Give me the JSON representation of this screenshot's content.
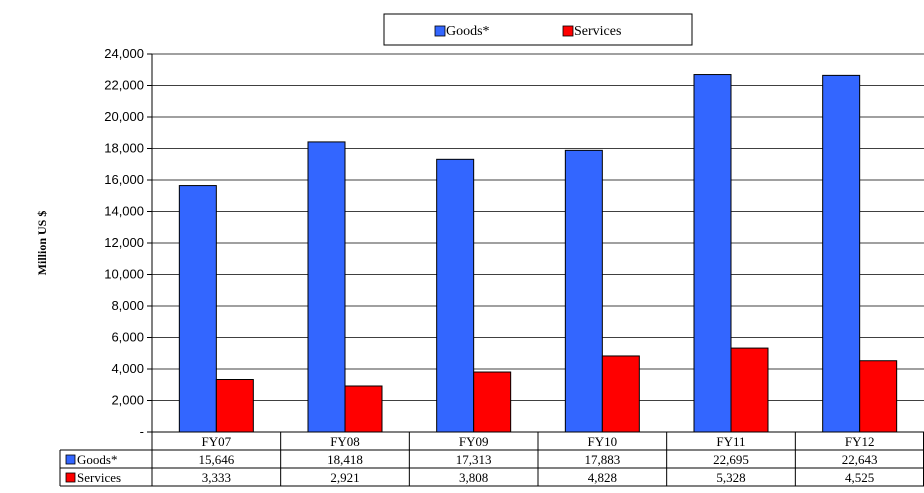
{
  "chart_data": {
    "type": "bar",
    "categories": [
      "FY07",
      "FY08",
      "FY09",
      "FY10",
      "FY11",
      "FY12"
    ],
    "series": [
      {
        "name": "Goods*",
        "values": [
          15646,
          18418,
          17313,
          17883,
          22695,
          22643
        ],
        "labels": [
          "15,646",
          "18,418",
          "17,313",
          "17,883",
          "22,695",
          "22,643"
        ]
      },
      {
        "name": "Services",
        "values": [
          3333,
          2921,
          3808,
          4828,
          5328,
          4525
        ],
        "labels": [
          "3,333",
          "2,921",
          "3,808",
          "4,828",
          "5,328",
          "4,525"
        ]
      }
    ],
    "ylabel": "Million US $",
    "ylim": [
      0,
      24000
    ],
    "yticks": [
      0,
      2000,
      4000,
      6000,
      8000,
      10000,
      12000,
      14000,
      16000,
      18000,
      20000,
      22000,
      24000
    ],
    "ytick_labels": [
      "-",
      "2,000",
      "4,000",
      "6,000",
      "8,000",
      "10,000",
      "12,000",
      "14,000",
      "16,000",
      "18,000",
      "20,000",
      "22,000",
      "24,000"
    ],
    "grid": true,
    "legend_position": "top",
    "data_table": true,
    "colors": {
      "Goods*": "#3366ff",
      "Services": "#ff0000"
    }
  }
}
